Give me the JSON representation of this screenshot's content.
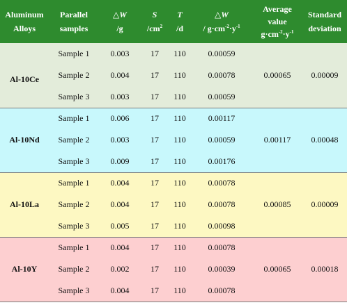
{
  "header": {
    "alloys": [
      "Aluminum",
      "Alloys"
    ],
    "parallel": [
      "Parallel",
      "samples"
    ],
    "dw": [
      "△W",
      "/g"
    ],
    "s": [
      "S",
      "/cm",
      "2"
    ],
    "t": [
      "T",
      "/d"
    ],
    "rate": [
      "△W",
      "/ g·cm",
      "-2",
      "·y",
      "-1"
    ],
    "average": [
      "Average",
      "value",
      "g·cm",
      "-2",
      "·y",
      "-1"
    ],
    "std": [
      "Standard",
      "deviation"
    ]
  },
  "groups": [
    {
      "alloy": "Al-10Ce",
      "color": "#e3ecda",
      "average": "0.00065",
      "std": "0.00009",
      "rows": [
        {
          "sample": "Sample 1",
          "dw": "0.003",
          "s": "17",
          "t": "110",
          "rate": "0.00059"
        },
        {
          "sample": "Sample 2",
          "dw": "0.004",
          "s": "17",
          "t": "110",
          "rate": "0.00078"
        },
        {
          "sample": "Sample 3",
          "dw": "0.003",
          "s": "17",
          "t": "110",
          "rate": "0.00059"
        }
      ]
    },
    {
      "alloy": "Al-10Nd",
      "color": "#c8f8fc",
      "average": "0.00117",
      "std": "0.00048",
      "rows": [
        {
          "sample": "Sample 1",
          "dw": "0.006",
          "s": "17",
          "t": "110",
          "rate": "0.00117"
        },
        {
          "sample": "Sample 2",
          "dw": "0.003",
          "s": "17",
          "t": "110",
          "rate": "0.00059"
        },
        {
          "sample": "Sample 3",
          "dw": "0.009",
          "s": "17",
          "t": "110",
          "rate": "0.00176"
        }
      ]
    },
    {
      "alloy": "Al-10La",
      "color": "#fdf8c2",
      "average": "0.00085",
      "std": "0.00009",
      "rows": [
        {
          "sample": "Sample 1",
          "dw": "0.004",
          "s": "17",
          "t": "110",
          "rate": "0.00078"
        },
        {
          "sample": "Sample 2",
          "dw": "0.004",
          "s": "17",
          "t": "110",
          "rate": "0.00078"
        },
        {
          "sample": "Sample 3",
          "dw": "0.005",
          "s": "17",
          "t": "110",
          "rate": "0.00098"
        }
      ]
    },
    {
      "alloy": "Al-10Y",
      "color": "#fdcfd0",
      "average": "0.00065",
      "std": "0.00018",
      "rows": [
        {
          "sample": "Sample 1",
          "dw": "0.004",
          "s": "17",
          "t": "110",
          "rate": "0.00078"
        },
        {
          "sample": "Sample 2",
          "dw": "0.002",
          "s": "17",
          "t": "110",
          "rate": "0.00039"
        },
        {
          "sample": "Sample 3",
          "dw": "0.004",
          "s": "17",
          "t": "110",
          "rate": "0.00078"
        }
      ]
    }
  ]
}
